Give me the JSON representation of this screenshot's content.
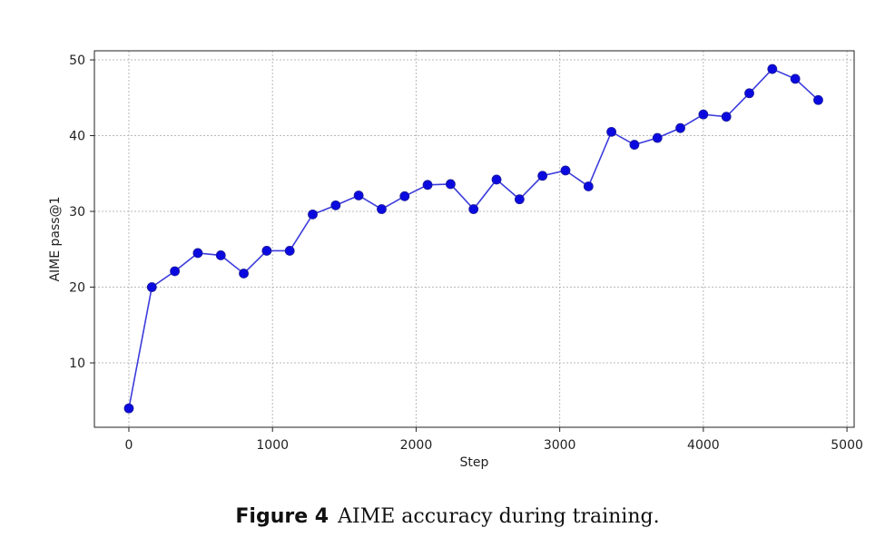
{
  "chart_data": {
    "type": "line",
    "xlabel": "Step",
    "ylabel": "AIME pass@1",
    "xlim": [
      -240,
      5050
    ],
    "ylim": [
      1.5,
      51.2
    ],
    "xticks": [
      0,
      1000,
      2000,
      3000,
      4000,
      5000
    ],
    "yticks": [
      10,
      20,
      30,
      40,
      50
    ],
    "grid": true,
    "line_color": "#3b3bdc",
    "marker_color": "#0a0ae0",
    "series": [
      {
        "x": [
          0,
          160,
          320,
          480,
          640,
          800,
          960,
          1120,
          1280,
          1440,
          1600,
          1760,
          1920,
          2080,
          2240,
          2400,
          2560,
          2720,
          2880,
          3040,
          3200,
          3360,
          3520,
          3680,
          3840,
          4000,
          4160,
          4320,
          4480,
          4640,
          4800
        ],
        "y": [
          4.0,
          20.0,
          22.1,
          24.5,
          24.2,
          21.8,
          24.8,
          24.8,
          29.6,
          30.8,
          32.1,
          30.3,
          32.0,
          33.5,
          33.6,
          30.3,
          34.2,
          31.6,
          34.7,
          35.4,
          33.3,
          40.5,
          38.8,
          39.7,
          41.0,
          42.8,
          42.5,
          45.6,
          48.8,
          47.5,
          44.7
        ]
      }
    ]
  },
  "caption": {
    "label": "Figure 4",
    "text": "AIME accuracy during training."
  }
}
